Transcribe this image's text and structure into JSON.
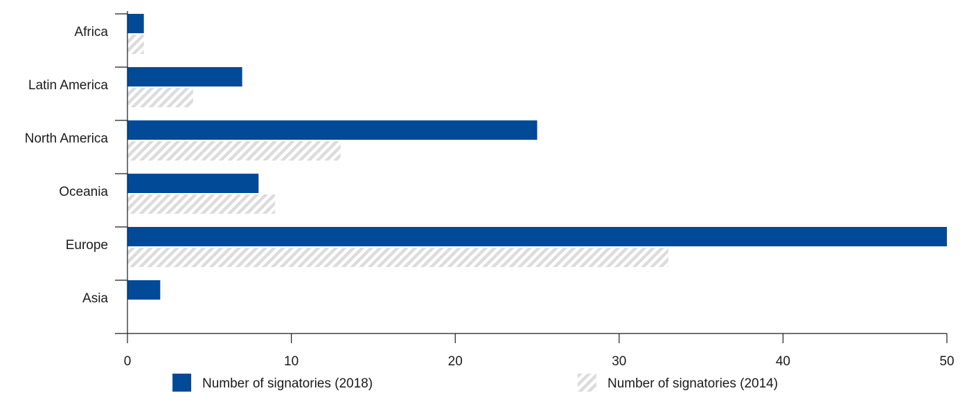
{
  "chart_data": {
    "type": "bar",
    "orientation": "horizontal",
    "categories": [
      "Africa",
      "Latin America",
      "North America",
      "Oceania",
      "Europe",
      "Asia"
    ],
    "series": [
      {
        "name": "Number of signatories (2018)",
        "values": [
          1,
          7,
          25,
          8,
          50,
          2
        ],
        "color": "#004a98",
        "pattern": "solid"
      },
      {
        "name": "Number of signatories (2014)",
        "values": [
          1,
          4,
          13,
          9,
          33,
          0
        ],
        "color": "#e4e4e4",
        "pattern": "diagonal-hatch"
      }
    ],
    "xlim": [
      0,
      50
    ],
    "xticks": [
      0,
      10,
      20,
      30,
      40,
      50
    ],
    "title": "",
    "xlabel": "",
    "ylabel": "",
    "grid": false,
    "legend_position": "bottom"
  },
  "colors": {
    "axis": "#1a1a1a",
    "series_2018": "#004a98",
    "series_2014_stripe": "#dcdcdc"
  }
}
